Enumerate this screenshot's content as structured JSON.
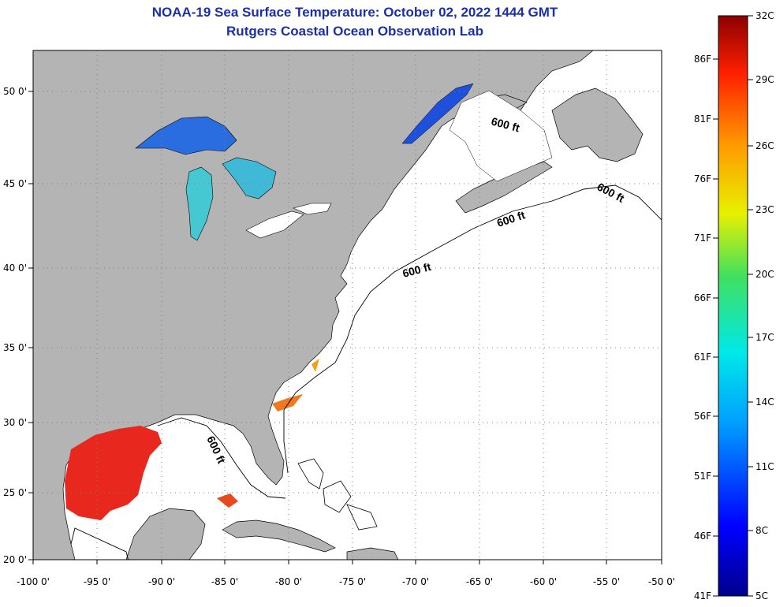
{
  "title_line1": "NOAA-19 Sea Surface Temperature:  October 02, 2022 1444 GMT",
  "title_line2": "Rutgers Coastal Ocean Observation Lab",
  "map": {
    "lon_ticks": [
      "-100 0'",
      "-95 0'",
      "-90 0'",
      "-85 0'",
      "-80 0'",
      "-75 0'",
      "-70 0'",
      "-65 0'",
      "-60 0'",
      "-55 0'",
      "-50 0'"
    ],
    "lat_ticks": [
      "50 0'",
      "45 0'",
      "40 0'",
      "35 0'",
      "30 0'",
      "25 0'",
      "20 0'"
    ],
    "isobath_label": "600 ft",
    "colors": {
      "land": "#b4b4b4",
      "ocean": "#ffffff",
      "grid": "#808080"
    }
  },
  "colorbar": {
    "celsius": [
      "32C",
      "29C",
      "26C",
      "23C",
      "20C",
      "17C",
      "14C",
      "11C",
      "8C",
      "5C"
    ],
    "fahrenheit": [
      "86F",
      "81F",
      "76F",
      "71F",
      "66F",
      "61F",
      "56F",
      "51F",
      "46F",
      "41F"
    ],
    "range_c": [
      5,
      32
    ]
  }
}
